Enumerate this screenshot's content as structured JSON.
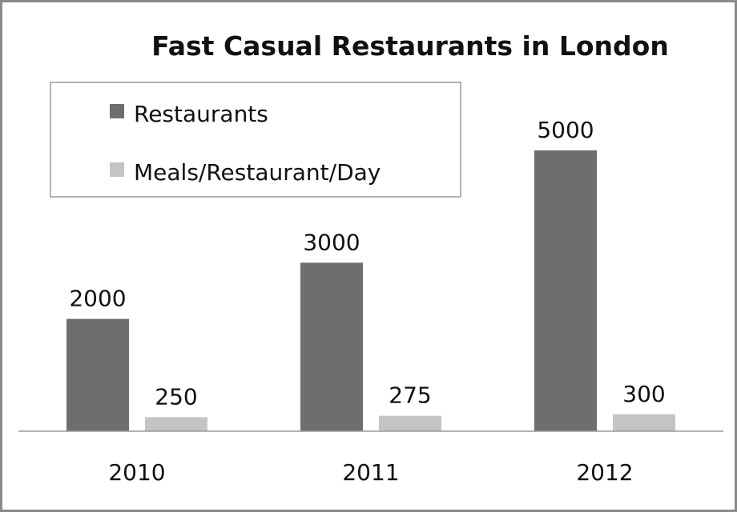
{
  "chart_data": {
    "type": "bar",
    "title": "Fast Casual Restaurants in London",
    "categories": [
      "2010",
      "2011",
      "2012"
    ],
    "series": [
      {
        "name": "Restaurants",
        "values": [
          2000,
          3000,
          5000
        ],
        "color": "#6e6e6e"
      },
      {
        "name": "Meals/Restaurant/Day",
        "values": [
          250,
          275,
          300
        ],
        "color": "#c4c4c4"
      }
    ],
    "xlabel": "",
    "ylabel": "",
    "ylim": [
      0,
      5000
    ],
    "grid": false,
    "legend_position": "top-left"
  }
}
